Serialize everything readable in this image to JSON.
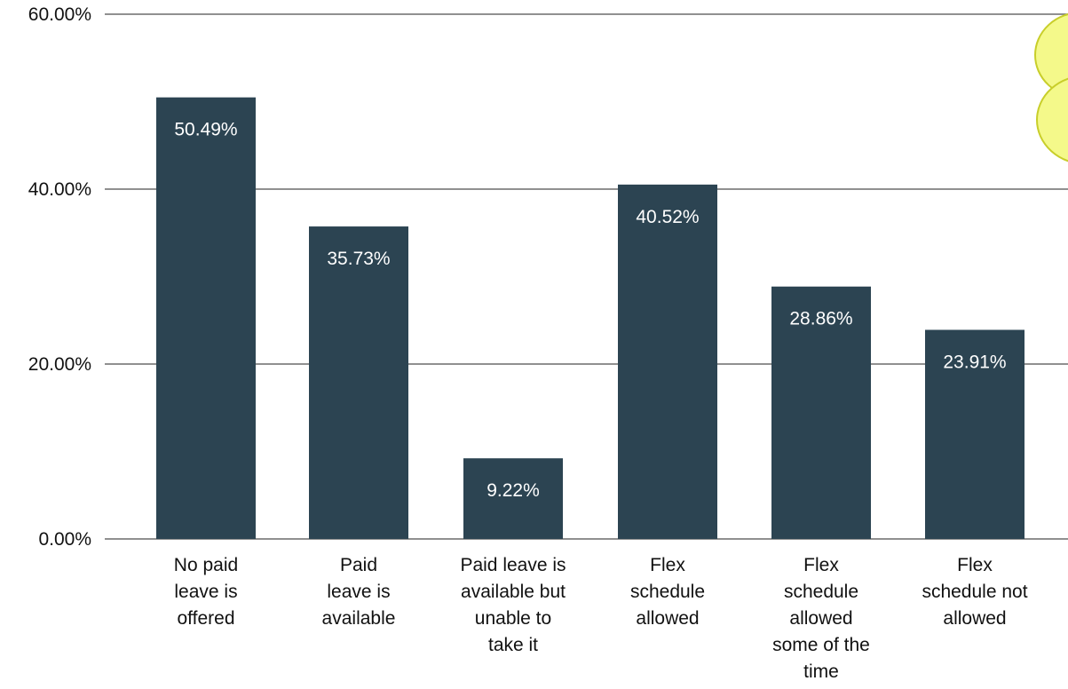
{
  "chart_data": {
    "type": "bar",
    "categories": [
      "No paid leave is offered",
      "Paid leave is available",
      "Paid leave is available but unable to take it",
      "Flex schedule allowed",
      "Flex schedule allowed some of the time",
      "Flex schedule not allowed"
    ],
    "category_lines": [
      [
        "No paid",
        "leave is",
        "offered"
      ],
      [
        "Paid",
        "leave is",
        "available"
      ],
      [
        "Paid leave is",
        "available but",
        "unable to",
        "take it"
      ],
      [
        "Flex",
        "schedule",
        "allowed"
      ],
      [
        "Flex",
        "schedule",
        "allowed",
        "some of the",
        "time"
      ],
      [
        "Flex",
        "schedule not",
        "allowed"
      ]
    ],
    "values": [
      50.49,
      35.73,
      9.22,
      40.52,
      28.86,
      23.91
    ],
    "value_labels": [
      "50.49%",
      "35.73%",
      "9.22%",
      "40.52%",
      "28.86%",
      "23.91%"
    ],
    "ylim": [
      0,
      60
    ],
    "yticks": [
      0,
      20,
      40,
      60
    ],
    "ytick_labels": [
      "0.00%",
      "20.00%",
      "40.00%",
      "60.00%"
    ],
    "grid": true,
    "colors": {
      "bar": "#2c4452",
      "gridline": "#6b6b6b",
      "value_text": "#ffffff",
      "decoration_fill": "#f4f98a",
      "decoration_stroke": "#c8ce2a"
    }
  }
}
